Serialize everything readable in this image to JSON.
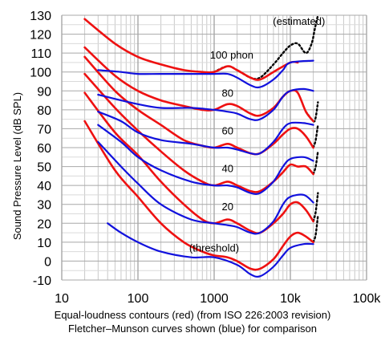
{
  "chart_data": {
    "type": "line",
    "title": "",
    "caption": [
      "Equal-loudness contours (red) (from ISO 226:2003 revision)",
      "Fletcher–Munson curves shown (blue) for comparison"
    ],
    "xlabel": "",
    "ylabel": "Sound Pressure Level (dB SPL)",
    "x_scale": "log",
    "xlim": [
      10,
      100000
    ],
    "ylim": [
      -10,
      130
    ],
    "x_tick_labels": [
      "10",
      "100",
      "1000",
      "10k",
      "100k"
    ],
    "x_tick_values": [
      10,
      100,
      1000,
      10000,
      100000
    ],
    "y_ticks": [
      -10,
      0,
      10,
      20,
      30,
      40,
      50,
      60,
      70,
      80,
      90,
      100,
      110,
      120,
      130
    ],
    "grid": true,
    "annotations": [
      {
        "text": "(estimated)",
        "x": 13000,
        "y": 125
      },
      {
        "text": "100 phon",
        "x": 1700,
        "y": 107
      },
      {
        "text": "80",
        "x": 1500,
        "y": 87
      },
      {
        "text": "60",
        "x": 1500,
        "y": 67
      },
      {
        "text": "40",
        "x": 1500,
        "y": 47
      },
      {
        "text": "20",
        "x": 1500,
        "y": 27
      },
      {
        "text": "(threshold)",
        "x": 1000,
        "y": 5
      }
    ],
    "colors": {
      "iso": "#ee1111",
      "fletcher": "#1111dd",
      "estimated": "#000000",
      "grid": "#c8c8c8"
    },
    "series": [
      {
        "group": "iso",
        "values": [
          [
            20,
            128
          ],
          [
            50,
            115
          ],
          [
            100,
            108
          ],
          [
            200,
            104
          ],
          [
            400,
            101
          ],
          [
            700,
            100
          ],
          [
            1000,
            100
          ],
          [
            1500,
            103
          ],
          [
            2000,
            101
          ],
          [
            3000,
            97
          ],
          [
            4000,
            96
          ],
          [
            6000,
            100
          ],
          [
            10000,
            105
          ],
          [
            12500,
            105
          ]
        ]
      },
      {
        "group": "iso",
        "values": [
          [
            20,
            113
          ],
          [
            50,
            98
          ],
          [
            100,
            90
          ],
          [
            200,
            85
          ],
          [
            400,
            82
          ],
          [
            700,
            80
          ],
          [
            1000,
            80
          ],
          [
            1500,
            83
          ],
          [
            2000,
            82
          ],
          [
            3000,
            78
          ],
          [
            4000,
            77
          ],
          [
            6000,
            81
          ],
          [
            8000,
            87
          ],
          [
            10000,
            90
          ],
          [
            12500,
            89
          ],
          [
            16000,
            79
          ],
          [
            20000,
            74
          ]
        ]
      },
      {
        "group": "iso",
        "values": [
          [
            20,
            108
          ],
          [
            50,
            90
          ],
          [
            100,
            80
          ],
          [
            200,
            72
          ],
          [
            400,
            64
          ],
          [
            700,
            61
          ],
          [
            1000,
            60
          ],
          [
            1500,
            62
          ],
          [
            2000,
            60
          ],
          [
            3000,
            57
          ],
          [
            4000,
            57
          ],
          [
            6000,
            62
          ],
          [
            8000,
            67
          ],
          [
            10000,
            70
          ],
          [
            12500,
            70
          ],
          [
            16000,
            66
          ],
          [
            20000,
            60
          ]
        ]
      },
      {
        "group": "iso",
        "values": [
          [
            20,
            99
          ],
          [
            50,
            81
          ],
          [
            100,
            69
          ],
          [
            200,
            58
          ],
          [
            400,
            48
          ],
          [
            700,
            42
          ],
          [
            1000,
            40
          ],
          [
            1500,
            42
          ],
          [
            2000,
            40
          ],
          [
            3000,
            37
          ],
          [
            4000,
            37
          ],
          [
            6000,
            42
          ],
          [
            8000,
            47
          ],
          [
            10000,
            51
          ],
          [
            12500,
            50
          ],
          [
            16000,
            50
          ],
          [
            20000,
            46
          ]
        ]
      },
      {
        "group": "iso",
        "values": [
          [
            20,
            89
          ],
          [
            50,
            68
          ],
          [
            100,
            56
          ],
          [
            200,
            42
          ],
          [
            400,
            30
          ],
          [
            700,
            22
          ],
          [
            1000,
            20
          ],
          [
            1500,
            22
          ],
          [
            2000,
            20
          ],
          [
            3000,
            16
          ],
          [
            4000,
            15
          ],
          [
            6000,
            20
          ],
          [
            8000,
            25
          ],
          [
            10000,
            30
          ],
          [
            12500,
            31
          ],
          [
            16000,
            27
          ],
          [
            20000,
            21
          ]
        ]
      },
      {
        "group": "iso",
        "values": [
          [
            20,
            74
          ],
          [
            50,
            48
          ],
          [
            100,
            34
          ],
          [
            200,
            20
          ],
          [
            400,
            10
          ],
          [
            700,
            5
          ],
          [
            1000,
            3
          ],
          [
            1500,
            2
          ],
          [
            2000,
            0
          ],
          [
            3000,
            -4
          ],
          [
            4000,
            -4
          ],
          [
            6000,
            1
          ],
          [
            8000,
            8
          ],
          [
            10000,
            13
          ],
          [
            12500,
            15
          ],
          [
            16000,
            13
          ],
          [
            20000,
            10
          ]
        ]
      },
      {
        "group": "fletcher",
        "values": [
          [
            30,
            101
          ],
          [
            60,
            100
          ],
          [
            100,
            99
          ],
          [
            200,
            99
          ],
          [
            500,
            99
          ],
          [
            1000,
            99
          ],
          [
            1500,
            99
          ],
          [
            2000,
            97
          ],
          [
            3000,
            93
          ],
          [
            4000,
            92
          ],
          [
            6000,
            96
          ],
          [
            8000,
            101
          ],
          [
            10000,
            105
          ],
          [
            20000,
            106
          ]
        ]
      },
      {
        "group": "fletcher",
        "values": [
          [
            30,
            88
          ],
          [
            60,
            85
          ],
          [
            100,
            83
          ],
          [
            200,
            81
          ],
          [
            500,
            81
          ],
          [
            1000,
            80
          ],
          [
            1500,
            79
          ],
          [
            2000,
            78
          ],
          [
            3000,
            75
          ],
          [
            4000,
            75
          ],
          [
            6000,
            80
          ],
          [
            8000,
            87
          ],
          [
            10000,
            90
          ],
          [
            15000,
            91
          ],
          [
            20000,
            90
          ]
        ]
      },
      {
        "group": "fletcher",
        "values": [
          [
            30,
            79
          ],
          [
            60,
            74
          ],
          [
            100,
            68
          ],
          [
            200,
            64
          ],
          [
            500,
            62
          ],
          [
            1000,
            60
          ],
          [
            1500,
            60
          ],
          [
            2000,
            59
          ],
          [
            3000,
            57
          ],
          [
            4000,
            57
          ],
          [
            6000,
            63
          ],
          [
            8000,
            70
          ],
          [
            10000,
            73
          ],
          [
            15000,
            73
          ],
          [
            20000,
            72
          ]
        ]
      },
      {
        "group": "fletcher",
        "values": [
          [
            30,
            72
          ],
          [
            60,
            63
          ],
          [
            100,
            55
          ],
          [
            200,
            48
          ],
          [
            500,
            42
          ],
          [
            1000,
            40
          ],
          [
            1500,
            40
          ],
          [
            2000,
            39
          ],
          [
            3000,
            36
          ],
          [
            4000,
            36
          ],
          [
            6000,
            42
          ],
          [
            8000,
            50
          ],
          [
            10000,
            54
          ],
          [
            15000,
            55
          ],
          [
            20000,
            53
          ]
        ]
      },
      {
        "group": "fletcher",
        "values": [
          [
            30,
            63
          ],
          [
            60,
            50
          ],
          [
            100,
            41
          ],
          [
            200,
            30
          ],
          [
            500,
            22
          ],
          [
            1000,
            20
          ],
          [
            1500,
            19
          ],
          [
            2000,
            18
          ],
          [
            3000,
            15
          ],
          [
            4000,
            15
          ],
          [
            6000,
            21
          ],
          [
            8000,
            30
          ],
          [
            10000,
            34
          ],
          [
            15000,
            35
          ],
          [
            20000,
            31
          ]
        ]
      },
      {
        "group": "fletcher",
        "values": [
          [
            40,
            20
          ],
          [
            60,
            15
          ],
          [
            100,
            10
          ],
          [
            200,
            5
          ],
          [
            500,
            2
          ],
          [
            1000,
            2
          ],
          [
            2000,
            -2
          ],
          [
            3000,
            -7
          ],
          [
            4000,
            -8
          ],
          [
            6000,
            -3
          ],
          [
            8000,
            3
          ],
          [
            10000,
            7
          ],
          [
            15000,
            9
          ],
          [
            20000,
            9
          ]
        ]
      },
      {
        "group": "estimated",
        "values": [
          [
            1000,
            100
          ],
          [
            1500,
            103
          ],
          [
            2000,
            101
          ],
          [
            3000,
            97
          ],
          [
            4000,
            97
          ],
          [
            6000,
            104
          ],
          [
            8000,
            110
          ],
          [
            10000,
            114
          ],
          [
            12500,
            115
          ],
          [
            16000,
            110
          ],
          [
            19000,
            115
          ],
          [
            21000,
            123
          ],
          [
            23000,
            130
          ]
        ]
      },
      {
        "group": "estimated",
        "values": [
          [
            16000,
            79
          ],
          [
            20000,
            74
          ],
          [
            21500,
            76
          ],
          [
            23000,
            84
          ]
        ]
      },
      {
        "group": "estimated",
        "values": [
          [
            20000,
            60
          ],
          [
            21500,
            64
          ],
          [
            23000,
            72
          ]
        ]
      },
      {
        "group": "estimated",
        "values": [
          [
            20000,
            46
          ],
          [
            21500,
            50
          ],
          [
            23000,
            58
          ]
        ]
      },
      {
        "group": "estimated",
        "values": [
          [
            20000,
            21
          ],
          [
            21500,
            26
          ],
          [
            23000,
            36
          ]
        ]
      },
      {
        "group": "estimated",
        "values": [
          [
            20000,
            10
          ],
          [
            21500,
            14
          ],
          [
            23000,
            24
          ]
        ]
      }
    ]
  }
}
